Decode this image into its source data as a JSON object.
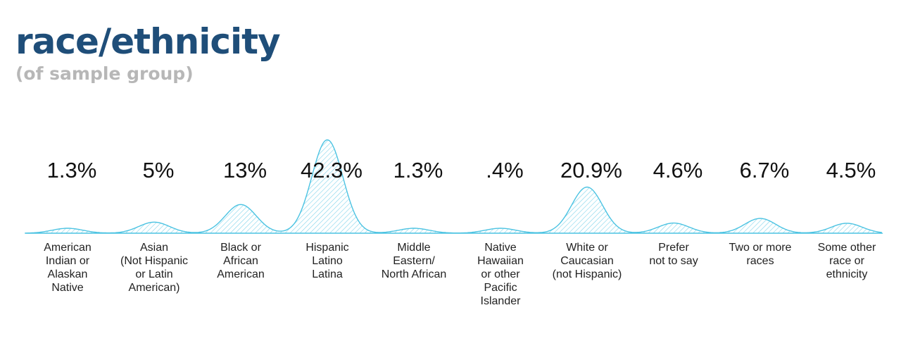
{
  "title": "race/ethnicity",
  "subtitle": "(of sample group)",
  "colors": {
    "title": "#1f4e79",
    "subtitle": "#b7b7b7",
    "stroke": "#4cc3e2",
    "hatch": "#7fd3ea"
  },
  "chart_data": {
    "type": "area",
    "categories": [
      [
        "American",
        "Indian or",
        "Alaskan",
        "Native"
      ],
      [
        "Asian",
        "(Not Hispanic",
        "or Latin",
        "American)"
      ],
      [
        "Black or",
        "African",
        "American"
      ],
      [
        "Hispanic",
        "Latino",
        "Latina"
      ],
      [
        "Middle",
        "Eastern/",
        "North African"
      ],
      [
        "Native",
        "Hawaiian",
        "or other",
        "Pacific",
        "Islander"
      ],
      [
        "White or",
        "Caucasian",
        "(not Hispanic)"
      ],
      [
        "Prefer",
        "not to say"
      ],
      [
        "Two or more",
        "races"
      ],
      [
        "Some other",
        "race or",
        "ethnicity"
      ]
    ],
    "value_labels": [
      "1.3%",
      "5%",
      "13%",
      "42.3%",
      "1.3%",
      ".4%",
      "20.9%",
      "4.6%",
      "6.7%",
      "4.5%"
    ],
    "values": [
      1.3,
      5,
      13,
      42.3,
      1.3,
      0.4,
      20.9,
      4.6,
      6.7,
      4.5
    ],
    "ylim": [
      0,
      45
    ]
  }
}
